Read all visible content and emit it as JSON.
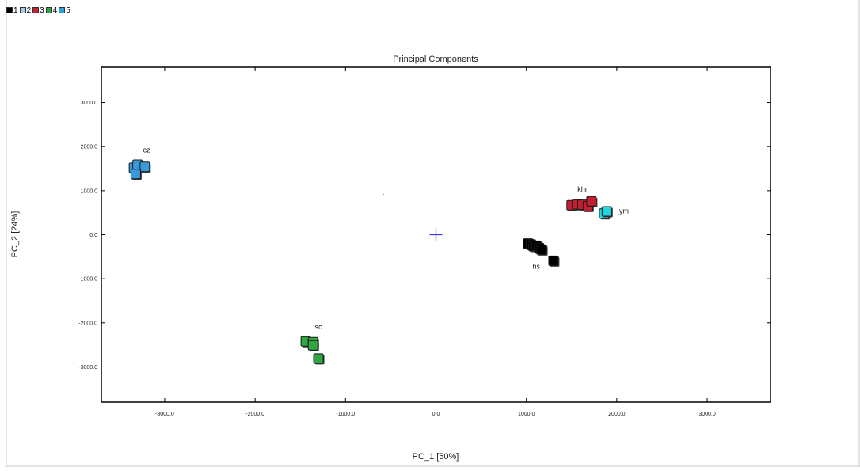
{
  "legend": {
    "items": [
      {
        "label": "1",
        "color": "#000000"
      },
      {
        "label": "2",
        "color": "#a9c9ea"
      },
      {
        "label": "3",
        "color": "#c22030"
      },
      {
        "label": "4",
        "color": "#2fa844"
      },
      {
        "label": "5",
        "color": "#2da0d6"
      }
    ]
  },
  "chart_data": {
    "type": "scatter",
    "title": "Principal Components",
    "xlabel": "PC_1 [50%]",
    "ylabel": "PC_2 [24%]",
    "xlim": [
      -3700,
      3700
    ],
    "ylim": [
      -3800,
      3800
    ],
    "xticks": [
      -3000,
      -2000,
      -1000,
      0,
      1000,
      2000,
      3000
    ],
    "yticks": [
      3000,
      2000,
      1000,
      0,
      -1000,
      -2000,
      -3000
    ],
    "xtick_labels": [
      "-3000.0",
      "-2000.0",
      "-1000.0",
      "0.0",
      "1000.0",
      "2000.0",
      "3000.0"
    ],
    "ytick_labels": [
      "3000.0",
      "2000.0",
      "1000.0",
      "0.0",
      "-1000.0",
      "-2000.0",
      "-3000.0"
    ],
    "origin_marker": {
      "x": 0,
      "y": 0,
      "color": "#3a3ae0"
    },
    "series": [
      {
        "group": "1",
        "label": "hs",
        "color": "#000000",
        "points": [
          [
            1020,
            -200
          ],
          [
            1050,
            -220
          ],
          [
            1080,
            -260
          ],
          [
            1110,
            -250
          ],
          [
            1140,
            -300
          ],
          [
            1170,
            -340
          ],
          [
            1300,
            -590
          ]
        ],
        "label_pos": [
          1110,
          -720
        ]
      },
      {
        "group": "3",
        "label": "khr",
        "color": "#c22030",
        "points": [
          [
            1500,
            670
          ],
          [
            1560,
            690
          ],
          [
            1620,
            680
          ],
          [
            1680,
            650
          ],
          [
            1720,
            760
          ]
        ],
        "label_pos": [
          1620,
          1030
        ]
      },
      {
        "group": "5",
        "label": "ym",
        "color": "#22d6e0",
        "points": [
          [
            1860,
            480
          ],
          [
            1890,
            530
          ]
        ],
        "label_pos": [
          2080,
          540
        ]
      },
      {
        "group": "2",
        "label": "cz",
        "color": "#3a9ad9",
        "points": [
          [
            -3340,
            1520
          ],
          [
            -3300,
            1590
          ],
          [
            -3220,
            1540
          ],
          [
            -3320,
            1380
          ]
        ],
        "label_pos": [
          -3200,
          1920
        ]
      },
      {
        "group": "4",
        "label": "sc",
        "color": "#2fa844",
        "points": [
          [
            -1440,
            -2420
          ],
          [
            -1360,
            -2440
          ],
          [
            -1360,
            -2510
          ],
          [
            -1300,
            -2810
          ]
        ],
        "label_pos": [
          -1300,
          -2090
        ]
      }
    ]
  }
}
